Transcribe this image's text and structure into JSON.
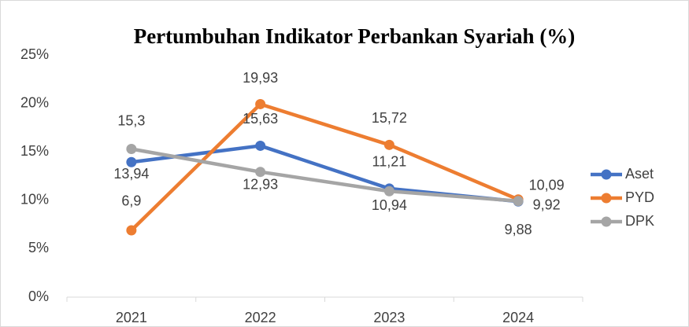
{
  "chart_data": {
    "type": "line",
    "title": "Pertumbuhan Indikator Perbankan Syariah (%)",
    "categories": [
      "2021",
      "2022",
      "2023",
      "2024"
    ],
    "series": [
      {
        "name": "Aset",
        "color": "#4472c4",
        "values": [
          13.94,
          15.63,
          11.21,
          9.88
        ],
        "value_labels": [
          "13,94",
          "15,63",
          "11,21",
          "9,88"
        ]
      },
      {
        "name": "PYD",
        "color": "#ed7d31",
        "values": [
          6.9,
          19.93,
          15.72,
          10.09
        ],
        "value_labels": [
          "6,9",
          "19,93",
          "15,72",
          "10,09"
        ]
      },
      {
        "name": "DPK",
        "color": "#a5a5a5",
        "values": [
          15.3,
          12.93,
          10.94,
          9.92
        ],
        "value_labels": [
          "15,3",
          "12,93",
          "10,94",
          "9,92"
        ]
      }
    ],
    "ylim": [
      0,
      25
    ],
    "yticks": [
      {
        "value": 0,
        "label": "0%"
      },
      {
        "value": 5,
        "label": "5%"
      },
      {
        "value": 10,
        "label": "10%"
      },
      {
        "value": 15,
        "label": "15%"
      },
      {
        "value": 20,
        "label": "20%"
      },
      {
        "value": 25,
        "label": "25%"
      }
    ],
    "grid": false,
    "legend": "right"
  }
}
